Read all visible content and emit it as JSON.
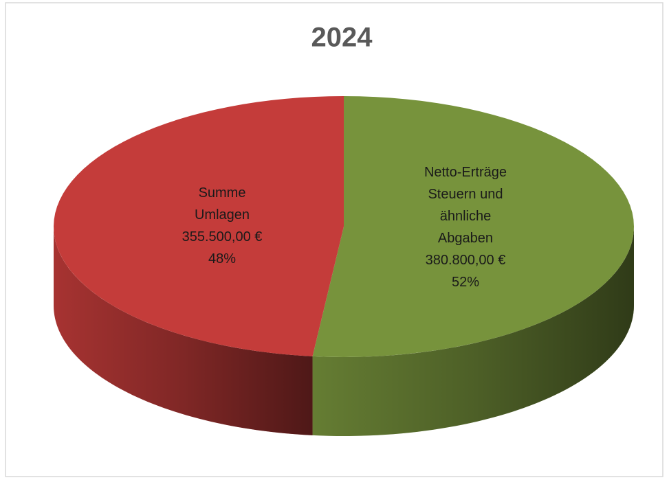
{
  "chart_data": {
    "type": "pie",
    "title": "2024",
    "categories": [
      "Netto-Erträge Steuern und ähnliche Abgaben",
      "Summe Umlagen"
    ],
    "values": [
      380800,
      355500
    ],
    "value_labels": [
      "380.800,00 €",
      "355.500,00 €"
    ],
    "percent_labels": [
      "52%",
      "48%"
    ],
    "colors": [
      "#77933c",
      "#c43c3a"
    ]
  }
}
